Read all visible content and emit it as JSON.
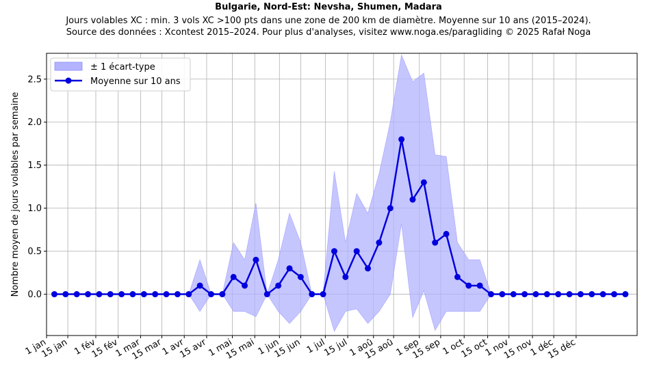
{
  "title": "Bulgarie, Nord-Est: Nevsha, Shumen, Madara",
  "subtitle_line1": "Jours volables XC : min. 3 vols XC >100 pts dans une zone de 200 km de diamètre. Moyenne sur 10 ans (2015–2024).",
  "subtitle_line2": "Source des données : Xcontest 2015–2024. Pour plus d'analyses, visitez www.noga.es/paragliding © 2025 Rafał Noga",
  "colors": {
    "line": "#0000dd",
    "band": "#b3b3ff",
    "grid": "#b0b0b0"
  },
  "chart_data": {
    "type": "line",
    "ylabel": "Nombre moyen de jours volables par semaine",
    "xlabel": "",
    "ylim": [
      -0.48,
      2.8
    ],
    "xlim": [
      -0.7,
      52.05
    ],
    "yticks": [
      0.0,
      0.5,
      1.0,
      1.5,
      2.0,
      2.5
    ],
    "ytick_labels": [
      "0.0",
      "0.5",
      "1.0",
      "1.5",
      "2.0",
      "2.5"
    ],
    "xtick_positions": [
      -0.7,
      1.2,
      3.7,
      5.7,
      7.7,
      9.6,
      11.6,
      13.6,
      15.9,
      17.9,
      20.1,
      22.0,
      24.2,
      26.2,
      28.5,
      30.3,
      32.6,
      34.5,
      36.6,
      38.7,
      40.6,
      42.7,
      44.6,
      46.6
    ],
    "xtick_labels": [
      "1 jan",
      "15 jan",
      "1 fév",
      "15 fév",
      "1 mar",
      "15 mar",
      "1 avr",
      "15 avr",
      "1 mai",
      "15 mai",
      "1 jun",
      "15 jun",
      "1 jul",
      "15 jul",
      "1 aoû",
      "15 aoû",
      "1 sep",
      "15 sep",
      "1 oct",
      "15 oct",
      "1 nov",
      "15 nov",
      "1 déc",
      "15 déc"
    ],
    "grid": true,
    "legend_position": "top-left",
    "series": [
      {
        "name": "Moyenne sur 10 ans",
        "x": [
          0,
          1,
          2,
          3,
          4,
          5,
          6,
          7,
          8,
          9,
          10,
          11,
          12,
          13,
          14,
          15,
          16,
          17,
          18,
          19,
          20,
          21,
          22,
          23,
          24,
          25,
          26,
          27,
          28,
          29,
          30,
          31,
          32,
          33,
          34,
          35,
          36,
          37,
          38,
          39,
          40,
          41,
          42,
          43,
          44,
          45,
          46,
          47,
          48,
          49,
          50,
          51
        ],
        "values": [
          0,
          0,
          0,
          0,
          0,
          0,
          0,
          0,
          0,
          0,
          0,
          0,
          0,
          0.1,
          0,
          0,
          0.2,
          0.1,
          0.4,
          0,
          0.1,
          0.3,
          0.2,
          0,
          0,
          0.5,
          0.2,
          0.5,
          0.3,
          0.6,
          1.0,
          1.8,
          1.1,
          1.3,
          0.6,
          0.7,
          0.2,
          0.1,
          0.1,
          0,
          0,
          0,
          0,
          0,
          0,
          0,
          0,
          0,
          0,
          0,
          0,
          0
        ]
      }
    ],
    "band": {
      "name": "± 1 écart-type",
      "lower": [
        0,
        0,
        0,
        0,
        0,
        0,
        0,
        0,
        0,
        0,
        0,
        0,
        0,
        -0.2,
        0,
        0,
        -0.2,
        -0.2,
        -0.26,
        0,
        -0.2,
        -0.34,
        -0.2,
        0,
        0,
        -0.43,
        -0.2,
        -0.17,
        -0.34,
        -0.2,
        0,
        0.82,
        -0.27,
        0.04,
        -0.42,
        -0.2,
        -0.2,
        -0.2,
        -0.2,
        0,
        0,
        0,
        0,
        0,
        0,
        0,
        0,
        0,
        0,
        0,
        0,
        0
      ],
      "upper": [
        0,
        0,
        0,
        0,
        0,
        0,
        0,
        0,
        0,
        0,
        0,
        0,
        0,
        0.4,
        0,
        0,
        0.6,
        0.4,
        1.06,
        0,
        0.4,
        0.94,
        0.6,
        0,
        0,
        1.43,
        0.6,
        1.17,
        0.94,
        1.4,
        2.0,
        2.78,
        2.47,
        2.57,
        1.62,
        1.6,
        0.6,
        0.4,
        0.4,
        0,
        0,
        0,
        0,
        0,
        0,
        0,
        0,
        0,
        0,
        0,
        0,
        0
      ]
    }
  }
}
